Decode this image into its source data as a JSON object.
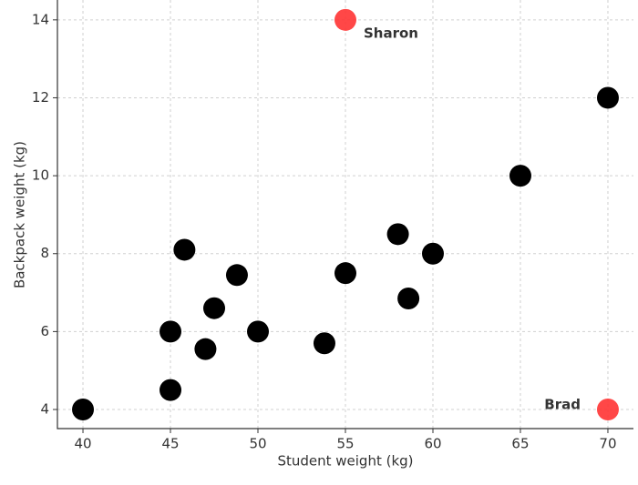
{
  "chart_data": {
    "type": "scatter",
    "xlabel": "Student weight (kg)",
    "ylabel": "Backpack weight (kg)",
    "xlim": [
      38.54,
      71.46
    ],
    "ylim": [
      3.51,
      14.51
    ],
    "xticks": [
      40,
      45,
      50,
      55,
      60,
      65,
      70
    ],
    "yticks": [
      4,
      6,
      8,
      10,
      12,
      14
    ],
    "grid": true,
    "series": [
      {
        "color": "#000000",
        "x": [
          40,
          45,
          45,
          45.8,
          47,
          47.5,
          48.8,
          50,
          53.8,
          55,
          58,
          58.6,
          60,
          65,
          70
        ],
        "values": [
          4,
          4.5,
          6,
          8.1,
          5.55,
          6.6,
          7.45,
          6,
          5.7,
          7.5,
          8.5,
          6.85,
          8,
          10,
          12
        ]
      },
      {
        "color": "#ff3333",
        "x": [
          55,
          70
        ],
        "values": [
          14,
          4
        ],
        "labels": [
          "Sharon",
          "Brad"
        ]
      }
    ]
  }
}
